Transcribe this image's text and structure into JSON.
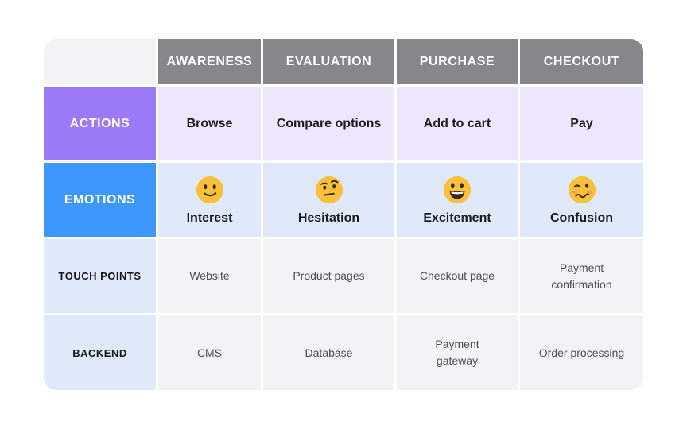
{
  "columns": [
    "AWARENESS",
    "EVALUATION",
    "PURCHASE",
    "CHECKOUT"
  ],
  "rows": {
    "actions": {
      "label": "ACTIONS",
      "cells": [
        "Browse",
        "Compare options",
        "Add to cart",
        "Pay"
      ]
    },
    "emotions": {
      "label": "EMOTIONS",
      "cells": [
        {
          "emoji": "slightly-smiling-face-icon",
          "text": "Interest"
        },
        {
          "emoji": "face-with-raised-eyebrow-icon",
          "text": "Hesitation"
        },
        {
          "emoji": "grinning-face-icon",
          "text": "Excitement"
        },
        {
          "emoji": "woozy-face-icon",
          "text": "Confusion"
        }
      ]
    },
    "touch_points": {
      "label": "TOUCH POINTS",
      "cells": [
        "Website",
        "Product pages",
        "Checkout page",
        "Payment confirmation"
      ]
    },
    "backend": {
      "label": "BACKEND",
      "cells": [
        "CMS",
        "Database",
        "Payment gateway",
        "Order processing"
      ]
    }
  },
  "colors": {
    "header_gray": "#86868b",
    "actions_purple": "#9b79f7",
    "emotions_blue": "#3e97fa",
    "light_blue": "#dfe9fa",
    "light_purple": "#ede6fd",
    "light_gray": "#f3f3f5",
    "emoji_yellow": "#f7c23a"
  }
}
